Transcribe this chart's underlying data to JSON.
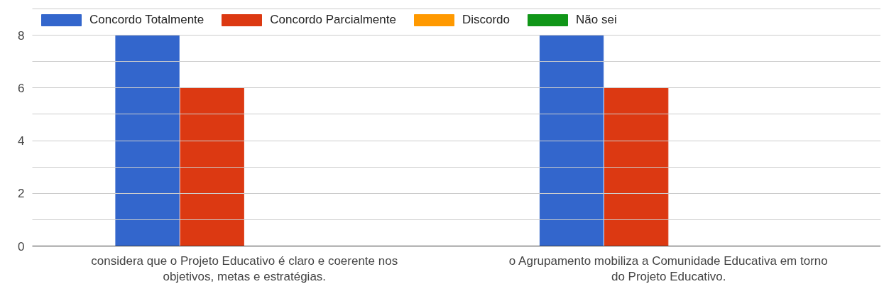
{
  "chart_data": {
    "type": "bar",
    "categories": [
      "considera que o Projeto Educativo é claro e coerente nos objetivos, metas e estratégias.",
      "o Agrupamento mobiliza a Comunidade Educativa em torno do Projeto Educativo."
    ],
    "series": [
      {
        "name": "Concordo Totalmente",
        "color": "#3366cc",
        "values": [
          8,
          8
        ]
      },
      {
        "name": "Concordo Parcialmente",
        "color": "#dc3912",
        "values": [
          6,
          6
        ]
      },
      {
        "name": "Discordo",
        "color": "#ff9900",
        "values": [
          0,
          0
        ]
      },
      {
        "name": "Não sei",
        "color": "#109618",
        "values": [
          0,
          0
        ]
      }
    ],
    "ylim": [
      0,
      9
    ],
    "yticks": [
      0,
      {
        "value": 1,
        "label": null
      },
      2,
      {
        "value": 3,
        "label": null
      },
      4,
      {
        "value": 5,
        "label": null
      },
      6,
      {
        "value": 7,
        "label": null
      },
      8,
      {
        "value": 9,
        "label": null
      }
    ],
    "grid": "y",
    "legend": "top"
  }
}
